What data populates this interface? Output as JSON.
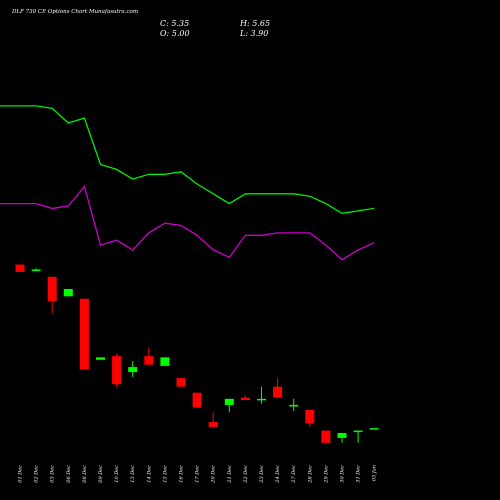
{
  "header": {
    "title": "DLF 730 CE Options Chart Munafasutra.com",
    "close": "C: 5.35",
    "high": "H: 5.65",
    "open": "O: 5.00",
    "low": "L: 3.90"
  },
  "colors": {
    "background": "#000000",
    "up": "#00ff00",
    "down": "#ff0000",
    "line_upper": "#00ee00",
    "line_lower": "#cc00cc",
    "text": "#ffffff"
  },
  "chart_data": {
    "type": "candlestick",
    "title": "DLF 730 CE Options Chart Munafasutra.com",
    "categories": [
      "01 Dec",
      "02 Dec",
      "03 Dec",
      "06 Dec",
      "08 Dec",
      "09 Dec",
      "10 Dec",
      "13 Dec",
      "14 Dec",
      "15 Dec",
      "16 Dec",
      "17 Dec",
      "20 Dec",
      "21 Dec",
      "22 Dec",
      "23 Dec",
      "24 Dec",
      "27 Dec",
      "28 Dec",
      "29 Dec",
      "30 Dec",
      "31 Dec",
      "03 Jan"
    ],
    "ohlc": [
      {
        "open": 63.0,
        "high": 63.0,
        "low": 60.0,
        "close": 60.0
      },
      {
        "open": 61.0,
        "high": 61.5,
        "low": 60.5,
        "close": 61.0
      },
      {
        "open": 58.0,
        "high": 58.0,
        "low": 43.0,
        "close": 48.0
      },
      {
        "open": 50.0,
        "high": 53.0,
        "low": 50.0,
        "close": 53.0
      },
      {
        "open": 49.0,
        "high": 49.0,
        "low": 20.0,
        "close": 20.0
      },
      {
        "open": 24.0,
        "high": 25.0,
        "low": 24.0,
        "close": 25.0
      },
      {
        "open": 25.5,
        "high": 26.5,
        "low": 13.0,
        "close": 14.0
      },
      {
        "open": 19.0,
        "high": 23.5,
        "low": 17.0,
        "close": 21.0
      },
      {
        "open": 25.5,
        "high": 29.0,
        "low": 22.0,
        "close": 22.0
      },
      {
        "open": 21.5,
        "high": 25.0,
        "low": 21.5,
        "close": 25.0
      },
      {
        "open": 16.5,
        "high": 16.5,
        "low": 13.0,
        "close": 13.0
      },
      {
        "open": 10.5,
        "high": 10.5,
        "low": 4.0,
        "close": 4.5
      },
      {
        "open": -1.5,
        "high": 2.5,
        "low": -3.5,
        "close": -3.5
      },
      {
        "open": 5.5,
        "high": 8.0,
        "low": 2.5,
        "close": 8.0
      },
      {
        "open": 8.5,
        "high": 9.5,
        "low": 7.5,
        "close": 7.5
      },
      {
        "open": 7.5,
        "high": 13.0,
        "low": 6.0,
        "close": 8.0
      },
      {
        "open": 13.0,
        "high": 16.5,
        "low": 8.5,
        "close": 8.5
      },
      {
        "open": 5.5,
        "high": 8.0,
        "low": 3.0,
        "close": 5.5
      },
      {
        "open": 3.5,
        "high": 3.5,
        "low": -3.5,
        "close": -2.0
      },
      {
        "open": -5.0,
        "high": -5.0,
        "low": -10.0,
        "close": -10.0
      },
      {
        "open": -8.0,
        "high": -6.0,
        "low": -10.0,
        "close": -6.0
      },
      {
        "open": -5.0,
        "high": -5.0,
        "low": -10.0,
        "close": -5.0
      },
      {
        "open": -4.0,
        "high": -4.0,
        "low": -4.0,
        "close": -4.0
      }
    ],
    "line_series": [
      {
        "values": [
          128,
          128,
          127,
          121,
          123,
          104,
          102,
          98,
          100,
          100,
          101,
          96,
          92,
          88,
          92,
          92,
          92,
          92,
          91,
          88,
          84,
          85,
          86
        ]
      },
      {
        "values": [
          88,
          88,
          86,
          87,
          95,
          71,
          73,
          69,
          76,
          80,
          79,
          75,
          69,
          66,
          75,
          75,
          76,
          76,
          76,
          71,
          65,
          69,
          72
        ]
      }
    ],
    "ylim": [
      -15,
      155
    ]
  }
}
